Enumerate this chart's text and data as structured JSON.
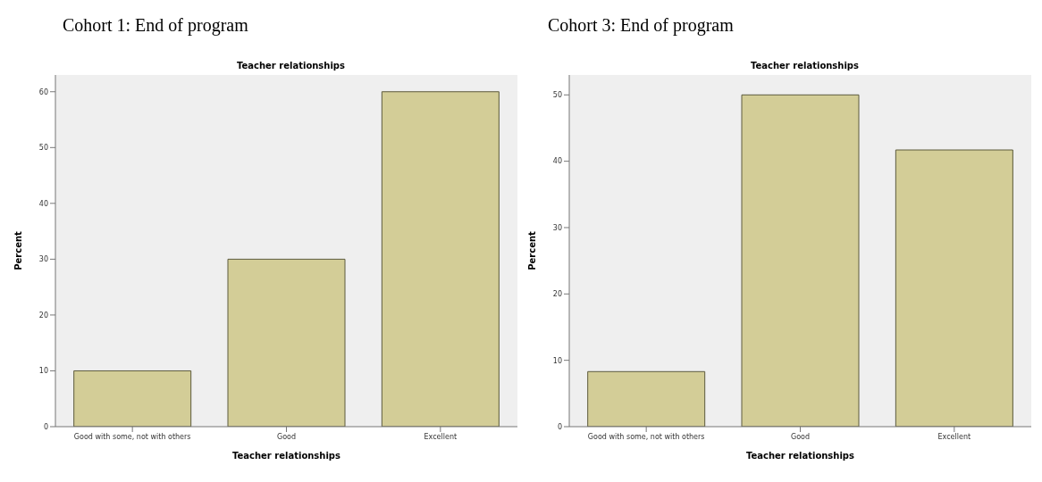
{
  "chart_data": [
    {
      "type": "bar",
      "title": "Cohort 1: End of program",
      "subtitle": "Teacher relationships",
      "xlabel": "Teacher relationships",
      "ylabel": "Percent",
      "categories": [
        "Good with some, not with others",
        "Good",
        "Excellent"
      ],
      "values": [
        10,
        30,
        60
      ],
      "color": "#d3cd97",
      "ylim": [
        0,
        63
      ],
      "yticks": [
        0,
        10,
        20,
        30,
        40,
        50,
        60
      ],
      "grid": false,
      "legend": false
    },
    {
      "type": "bar",
      "title": "Cohort 3: End of program",
      "subtitle": "Teacher relationships",
      "xlabel": "Teacher relationships",
      "ylabel": "Percent",
      "categories": [
        "Good with some, not with others",
        "Good",
        "Excellent"
      ],
      "values": [
        8.3,
        50,
        41.7
      ],
      "color": "#d3cd97",
      "ylim": [
        0,
        53
      ],
      "yticks": [
        0,
        10,
        20,
        30,
        40,
        50
      ],
      "grid": false,
      "legend": false
    }
  ]
}
